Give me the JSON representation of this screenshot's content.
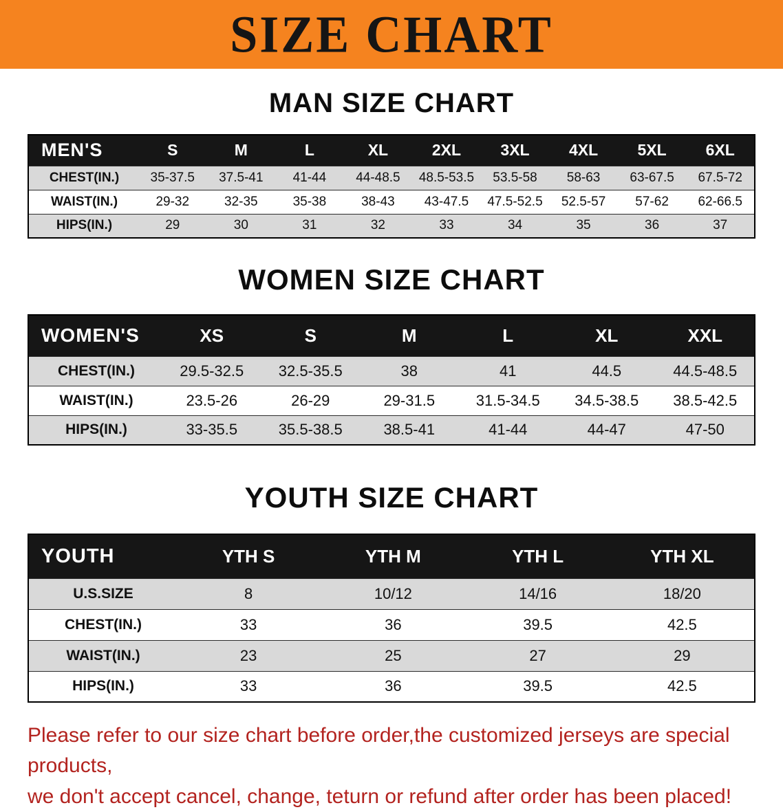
{
  "banner": {
    "title": "SIZE CHART"
  },
  "colors": {
    "banner_bg": "#F5831F",
    "table_header_bg": "#161616",
    "row_stripe_gray": "#D9D9D9",
    "disclaimer_red": "#B3231F"
  },
  "men": {
    "heading": "MAN SIZE CHART",
    "label": "MEN'S",
    "columns": [
      "S",
      "M",
      "L",
      "XL",
      "2XL",
      "3XL",
      "4XL",
      "5XL",
      "6XL"
    ],
    "rows": [
      {
        "label": "CHEST(IN.)",
        "values": [
          "35-37.5",
          "37.5-41",
          "41-44",
          "44-48.5",
          "48.5-53.5",
          "53.5-58",
          "58-63",
          "63-67.5",
          "67.5-72"
        ]
      },
      {
        "label": "WAIST(IN.)",
        "values": [
          "29-32",
          "32-35",
          "35-38",
          "38-43",
          "43-47.5",
          "47.5-52.5",
          "52.5-57",
          "57-62",
          "62-66.5"
        ]
      },
      {
        "label": "HIPS(IN.)",
        "values": [
          "29",
          "30",
          "31",
          "32",
          "33",
          "34",
          "35",
          "36",
          "37"
        ]
      }
    ]
  },
  "women": {
    "heading": "WOMEN SIZE CHART",
    "label": "WOMEN'S",
    "columns": [
      "XS",
      "S",
      "M",
      "L",
      "XL",
      "XXL"
    ],
    "rows": [
      {
        "label": "CHEST(IN.)",
        "values": [
          "29.5-32.5",
          "32.5-35.5",
          "38",
          "41",
          "44.5",
          "44.5-48.5"
        ]
      },
      {
        "label": "WAIST(IN.)",
        "values": [
          "23.5-26",
          "26-29",
          "29-31.5",
          "31.5-34.5",
          "34.5-38.5",
          "38.5-42.5"
        ]
      },
      {
        "label": "HIPS(IN.)",
        "values": [
          "33-35.5",
          "35.5-38.5",
          "38.5-41",
          "41-44",
          "44-47",
          "47-50"
        ]
      }
    ]
  },
  "youth": {
    "heading": "YOUTH SIZE CHART",
    "label": "YOUTH",
    "columns": [
      "YTH S",
      "YTH M",
      "YTH L",
      "YTH XL"
    ],
    "rows": [
      {
        "label": "U.S.SIZE",
        "values": [
          "8",
          "10/12",
          "14/16",
          "18/20"
        ]
      },
      {
        "label": "CHEST(IN.)",
        "values": [
          "33",
          "36",
          "39.5",
          "42.5"
        ]
      },
      {
        "label": "WAIST(IN.)",
        "values": [
          "23",
          "25",
          "27",
          "29"
        ]
      },
      {
        "label": "HIPS(IN.)",
        "values": [
          "33",
          "36",
          "39.5",
          "42.5"
        ]
      }
    ]
  },
  "disclaimer": {
    "line1": "Please refer to our size chart before order,the customized jerseys are special products,",
    "line2": "we don't accept cancel, change, teturn or refund after order has been placed!"
  }
}
